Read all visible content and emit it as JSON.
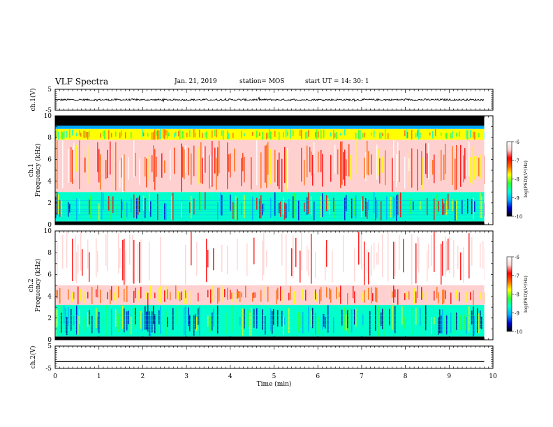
{
  "header": {
    "title": "VLF Spectra",
    "date": "Jan. 21, 2019",
    "station": "station= MOS",
    "start_ut": "start  UT =   14: 30: 1"
  },
  "chart_data": [
    {
      "type": "line",
      "ylabel": "ch.1(V)",
      "ylim": [
        -5,
        5
      ],
      "yticks": [
        "5",
        "-5"
      ],
      "x": [
        0,
        10
      ],
      "y": [
        0,
        0
      ],
      "note": "noisy trace around 0 V"
    },
    {
      "type": "heatmap",
      "ylabel": "Frequency (kHz)",
      "ylabel_ch": "ch.1",
      "ylim": [
        0,
        10
      ],
      "yticks": [
        "0",
        "2",
        "4",
        "6",
        "8",
        "10"
      ],
      "xlim": [
        0,
        10
      ],
      "data_end_min": 9.8,
      "colorbar": {
        "label": "log(PSD)(V²/Hz)",
        "ticks": [
          "-6",
          "-7",
          "-8",
          "-9",
          "-10"
        ],
        "range": [
          -10,
          -6
        ]
      },
      "bands": [
        {
          "from_khz": 0.0,
          "to_khz": 0.3,
          "level": -10
        },
        {
          "from_khz": 0.3,
          "to_khz": 3.0,
          "level": -8.8
        },
        {
          "from_khz": 3.0,
          "to_khz": 7.8,
          "level": -6.6
        },
        {
          "from_khz": 7.8,
          "to_khz": 8.8,
          "level": -7.8
        },
        {
          "from_khz": 8.8,
          "to_khz": 9.1,
          "level": -9.3
        },
        {
          "from_khz": 9.1,
          "to_khz": 10.0,
          "level": -10
        }
      ]
    },
    {
      "type": "heatmap",
      "ylabel": "Frequency (kHz)",
      "ylabel_ch": "ch.2",
      "ylim": [
        0,
        10
      ],
      "yticks": [
        "0",
        "2",
        "4",
        "6",
        "8",
        "10"
      ],
      "xlim": [
        0,
        10
      ],
      "data_end_min": 9.8,
      "colorbar": {
        "label": "log(PSD)(V²/Hz)",
        "ticks": [
          "-6",
          "-7",
          "-8",
          "-9",
          "-10"
        ],
        "range": [
          -10,
          -6
        ]
      },
      "bands": [
        {
          "from_khz": 0.0,
          "to_khz": 0.3,
          "level": -10
        },
        {
          "from_khz": 0.3,
          "to_khz": 3.2,
          "level": -8.8
        },
        {
          "from_khz": 3.2,
          "to_khz": 5.0,
          "level": -6.6
        },
        {
          "from_khz": 5.0,
          "to_khz": 10.0,
          "level": -6.0
        }
      ]
    },
    {
      "type": "line",
      "ylabel": "ch.2(V)",
      "ylim": [
        -5,
        5
      ],
      "yticks": [
        "5",
        "-5"
      ],
      "x": [
        0,
        10
      ],
      "y": [
        -2,
        -2
      ],
      "note": "flat trace"
    }
  ],
  "xaxis": {
    "label": "Time (min)",
    "ticks": [
      "0",
      "1",
      "2",
      "3",
      "4",
      "5",
      "6",
      "7",
      "8",
      "9",
      "10"
    ],
    "range": [
      0,
      10
    ]
  },
  "colors": {
    "scale": [
      "#000000",
      "#0000cc",
      "#00aaff",
      "#00ffcc",
      "#33ff33",
      "#ffff00",
      "#ff6600",
      "#ff0000",
      "#ffd0d0",
      "#ffffff"
    ]
  }
}
